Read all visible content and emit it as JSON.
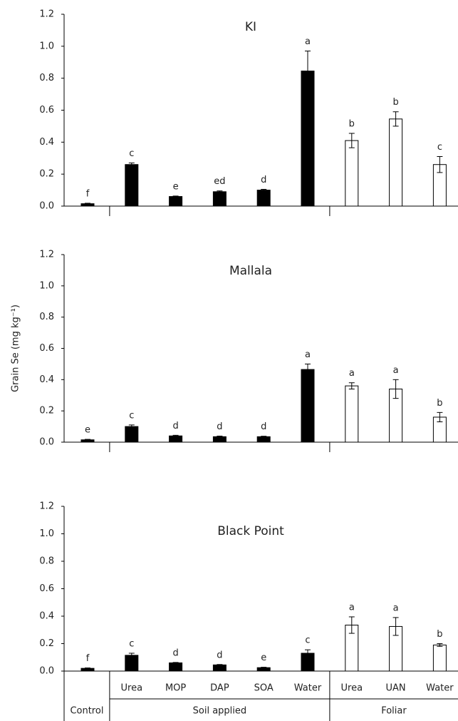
{
  "chart_data": [
    {
      "type": "bar",
      "title": "KI",
      "values": [
        0.015,
        0.26,
        0.06,
        0.09,
        0.1,
        0.845,
        0.41,
        0.545,
        0.26
      ],
      "errors": [
        0.003,
        0.01,
        0.003,
        0.005,
        0.005,
        0.125,
        0.045,
        0.045,
        0.05
      ],
      "annotations": [
        "f",
        "c",
        "e",
        "ed",
        "d",
        "a",
        "b",
        "b",
        "c"
      ],
      "colors": [
        "#000000",
        "#000000",
        "#000000",
        "#000000",
        "#000000",
        "#000000",
        "#ffffff",
        "#ffffff",
        "#ffffff"
      ],
      "ylim": [
        0,
        1.2
      ],
      "yticks": [
        {
          "value": 0,
          "label": "0.0"
        },
        {
          "value": 0.2,
          "label": "0.2"
        },
        {
          "value": 0.4,
          "label": "0.4"
        },
        {
          "value": 0.6,
          "label": "0.6"
        },
        {
          "value": 0.8,
          "label": "0.8"
        },
        {
          "value": 1,
          "label": "1.0"
        },
        {
          "value": 1.2,
          "label": "1.2"
        }
      ]
    },
    {
      "type": "bar",
      "title": "Mallala",
      "ylabel": "Grain Se (mg kg⁻¹)",
      "values": [
        0.015,
        0.1,
        0.04,
        0.035,
        0.035,
        0.465,
        0.36,
        0.34,
        0.16
      ],
      "errors": [
        0.003,
        0.01,
        0.004,
        0.004,
        0.003,
        0.035,
        0.02,
        0.06,
        0.03
      ],
      "annotations": [
        "e",
        "c",
        "d",
        "d",
        "d",
        "a",
        "a",
        "a",
        "b"
      ],
      "colors": [
        "#000000",
        "#000000",
        "#000000",
        "#000000",
        "#000000",
        "#000000",
        "#ffffff",
        "#ffffff",
        "#ffffff"
      ],
      "ylim": [
        0,
        1.2
      ],
      "yticks": [
        {
          "value": 0,
          "label": "0.0"
        },
        {
          "value": 0.2,
          "label": "0.2"
        },
        {
          "value": 0.4,
          "label": "0.4"
        },
        {
          "value": 0.6,
          "label": "0.6"
        },
        {
          "value": 0.8,
          "label": "0.8"
        },
        {
          "value": 1,
          "label": "1.0"
        },
        {
          "value": 1.2,
          "label": "1.2"
        }
      ]
    },
    {
      "type": "bar",
      "title": "Black Point",
      "categories": [
        null,
        "Urea",
        "MOP",
        "DAP",
        "SOA",
        "Water",
        "Urea",
        "UAN",
        "Water"
      ],
      "groups": [
        {
          "label": "Control",
          "span": 1
        },
        {
          "label": "Soil applied",
          "span": 5
        },
        {
          "label": "Foliar",
          "span": 3
        }
      ],
      "values": [
        0.02,
        0.115,
        0.06,
        0.045,
        0.025,
        0.13,
        0.335,
        0.325,
        0.19
      ],
      "errors": [
        0.003,
        0.015,
        0.003,
        0.003,
        0.003,
        0.025,
        0.06,
        0.065,
        0.01
      ],
      "annotations": [
        "f",
        "c",
        "d",
        "d",
        "e",
        "c",
        "a",
        "a",
        "b"
      ],
      "colors": [
        "#000000",
        "#000000",
        "#000000",
        "#000000",
        "#000000",
        "#000000",
        "#ffffff",
        "#ffffff",
        "#ffffff"
      ],
      "ylim": [
        0,
        1.2
      ],
      "yticks": [
        {
          "value": 0,
          "label": "0.0"
        },
        {
          "value": 0.2,
          "label": "0.2"
        },
        {
          "value": 0.4,
          "label": "0.4"
        },
        {
          "value": 0.6,
          "label": "0.6"
        },
        {
          "value": 0.8,
          "label": "0.8"
        },
        {
          "value": 1,
          "label": "1.0"
        },
        {
          "value": 1.2,
          "label": "1.2"
        }
      ]
    }
  ]
}
